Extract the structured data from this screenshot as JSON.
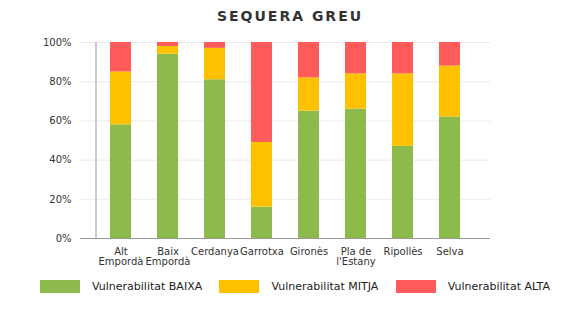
{
  "chart_data": {
    "type": "bar",
    "title": "SEQUERA GREU",
    "categories": [
      "Alt Empordà",
      "Baix Empordà",
      "Cerdanya",
      "Garrotxa",
      "Gironès",
      "Pla de l'Estany",
      "Ripollès",
      "Selva"
    ],
    "series": [
      {
        "name": "Vulnerabilitat BAIXA",
        "color": "#8cbb4c",
        "values": [
          58,
          94,
          81,
          16,
          65,
          66,
          47,
          62
        ]
      },
      {
        "name": "Vulnerabilitat MITJA",
        "color": "#ffc000",
        "values": [
          27,
          4,
          16,
          33,
          17,
          18,
          37,
          26
        ]
      },
      {
        "name": "Vulnerabilitat ALTA",
        "color": "#ff5b5b",
        "values": [
          15,
          2,
          3,
          51,
          18,
          16,
          16,
          12
        ]
      }
    ],
    "stacked": true,
    "ylim": [
      0,
      100
    ],
    "yticks": [
      {
        "value": 0,
        "label": "0%"
      },
      {
        "value": 20,
        "label": "20%"
      },
      {
        "value": 40,
        "label": "40%"
      },
      {
        "value": 60,
        "label": "60%"
      },
      {
        "value": 80,
        "label": "80%"
      },
      {
        "value": 100,
        "label": "100%"
      }
    ],
    "grid": true,
    "legend": "bottom"
  }
}
